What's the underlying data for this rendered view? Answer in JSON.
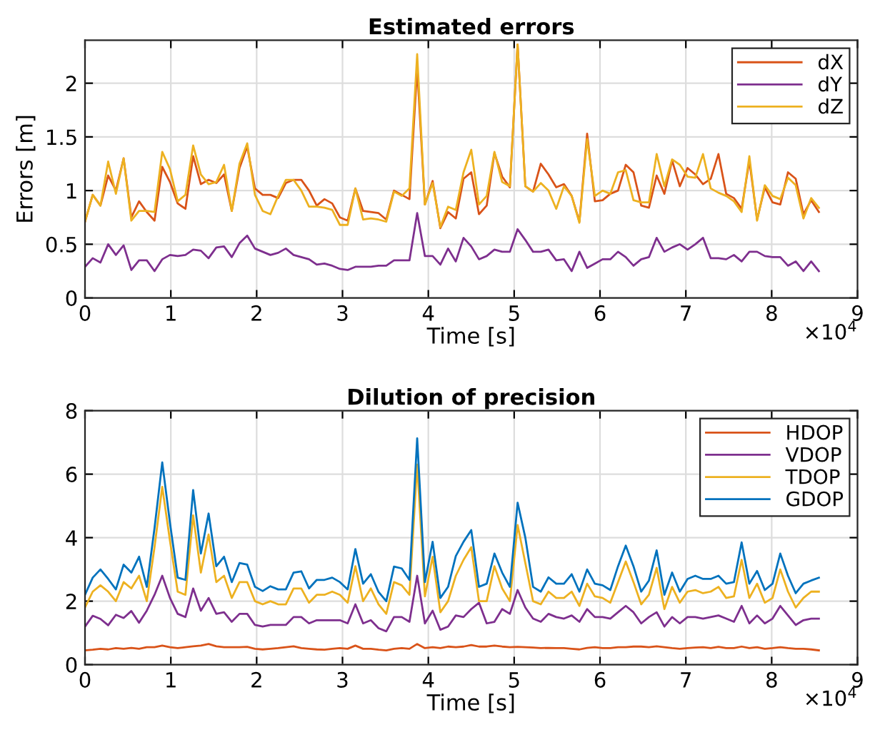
{
  "chart_data": [
    {
      "type": "line",
      "title": "Estimated errors",
      "xlabel": "Time [s]",
      "ylabel": "Errors [m]",
      "x": [
        0,
        0.09,
        0.18,
        0.27,
        0.36,
        0.45,
        0.54,
        0.63,
        0.72,
        0.81,
        0.9,
        0.99,
        1.08,
        1.17,
        1.26,
        1.35,
        1.44,
        1.53,
        1.62,
        1.71,
        1.8,
        1.89,
        1.98,
        2.07,
        2.16,
        2.25,
        2.34,
        2.43,
        2.52,
        2.61,
        2.7,
        2.79,
        2.88,
        2.97,
        3.06,
        3.15,
        3.24,
        3.33,
        3.42,
        3.51,
        3.6,
        3.69,
        3.78,
        3.87,
        3.96,
        4.05,
        4.14,
        4.23,
        4.32,
        4.41,
        4.5,
        4.59,
        4.68,
        4.77,
        4.86,
        4.95,
        5.04,
        5.13,
        5.22,
        5.31,
        5.4,
        5.49,
        5.58,
        5.67,
        5.76,
        5.85,
        5.94,
        6.03,
        6.12,
        6.21,
        6.3,
        6.39,
        6.48,
        6.57,
        6.66,
        6.75,
        6.84,
        6.93,
        7.02,
        7.11,
        7.2,
        7.29,
        7.38,
        7.47,
        7.56,
        7.65,
        7.74,
        7.83,
        7.92,
        8.01,
        8.1,
        8.19,
        8.28,
        8.37,
        8.46,
        8.55
      ],
      "series": [
        {
          "name": "dX",
          "color": "#d95319",
          "values": [
            0.71,
            0.96,
            0.86,
            1.14,
            1.0,
            1.3,
            0.75,
            0.9,
            0.8,
            0.72,
            1.22,
            1.08,
            0.88,
            0.83,
            1.32,
            1.06,
            1.1,
            1.07,
            1.15,
            0.81,
            1.21,
            1.41,
            1.02,
            0.96,
            0.96,
            0.93,
            1.07,
            1.1,
            1.1,
            1.0,
            0.86,
            0.92,
            0.88,
            0.75,
            0.72,
            1.02,
            0.81,
            0.8,
            0.79,
            0.73,
            1.0,
            0.96,
            0.92,
            2.14,
            0.87,
            1.09,
            0.65,
            0.8,
            0.74,
            1.11,
            1.17,
            0.78,
            0.86,
            1.35,
            1.13,
            1.03,
            2.36,
            1.04,
            0.99,
            1.25,
            1.15,
            1.03,
            1.06,
            0.95,
            0.71,
            1.53,
            0.9,
            0.91,
            0.97,
            1.0,
            1.24,
            1.17,
            0.86,
            0.84,
            1.14,
            0.97,
            1.28,
            1.04,
            1.21,
            1.15,
            1.06,
            1.11,
            1.34,
            0.97,
            0.93,
            0.83,
            1.28,
            0.73,
            1.03,
            0.89,
            0.87,
            1.17,
            1.11,
            0.78,
            0.91,
            0.8
          ]
        },
        {
          "name": "dY",
          "color": "#7e2f8e",
          "values": [
            0.29,
            0.37,
            0.33,
            0.5,
            0.4,
            0.49,
            0.26,
            0.35,
            0.35,
            0.25,
            0.36,
            0.4,
            0.39,
            0.4,
            0.45,
            0.44,
            0.37,
            0.47,
            0.48,
            0.38,
            0.51,
            0.58,
            0.46,
            0.43,
            0.4,
            0.42,
            0.46,
            0.4,
            0.38,
            0.36,
            0.31,
            0.32,
            0.3,
            0.27,
            0.26,
            0.29,
            0.29,
            0.29,
            0.3,
            0.3,
            0.35,
            0.35,
            0.35,
            0.79,
            0.39,
            0.39,
            0.31,
            0.46,
            0.34,
            0.56,
            0.48,
            0.36,
            0.39,
            0.45,
            0.43,
            0.43,
            0.64,
            0.54,
            0.43,
            0.43,
            0.45,
            0.35,
            0.36,
            0.25,
            0.43,
            0.28,
            0.32,
            0.36,
            0.36,
            0.43,
            0.38,
            0.3,
            0.36,
            0.38,
            0.56,
            0.43,
            0.47,
            0.5,
            0.45,
            0.5,
            0.56,
            0.37,
            0.37,
            0.36,
            0.4,
            0.34,
            0.43,
            0.43,
            0.39,
            0.38,
            0.38,
            0.3,
            0.34,
            0.25,
            0.34,
            0.25
          ]
        },
        {
          "name": "dZ",
          "color": "#edb120",
          "values": [
            0.71,
            0.96,
            0.86,
            1.27,
            0.97,
            1.3,
            0.72,
            0.81,
            0.81,
            0.8,
            1.36,
            1.2,
            0.9,
            0.96,
            1.42,
            1.15,
            1.06,
            1.08,
            1.24,
            0.81,
            1.25,
            1.44,
            0.96,
            0.81,
            0.78,
            0.95,
            1.1,
            1.1,
            1.0,
            0.85,
            0.85,
            0.84,
            0.82,
            0.68,
            0.68,
            1.02,
            0.73,
            0.74,
            0.73,
            0.71,
            0.99,
            0.95,
            1.02,
            2.27,
            0.87,
            1.07,
            0.66,
            0.85,
            0.82,
            1.17,
            1.38,
            0.87,
            0.95,
            1.36,
            1.08,
            1.04,
            2.36,
            1.04,
            0.99,
            1.07,
            1.0,
            0.83,
            1.04,
            0.95,
            0.7,
            1.48,
            0.95,
            1.0,
            0.97,
            1.17,
            1.19,
            0.91,
            0.89,
            0.89,
            1.34,
            1.04,
            1.29,
            1.24,
            1.13,
            1.12,
            1.34,
            1.02,
            0.98,
            0.95,
            0.9,
            0.8,
            1.32,
            0.72,
            1.05,
            0.95,
            0.92,
            1.12,
            1.05,
            0.74,
            0.93,
            0.84
          ]
        }
      ],
      "xlim": [
        0,
        9
      ],
      "xticks": [
        0,
        1,
        2,
        3,
        4,
        5,
        6,
        7,
        8,
        9
      ],
      "ylim": [
        0,
        2.4
      ],
      "yticks": [
        0,
        0.5,
        1,
        1.5,
        2
      ],
      "grid": true,
      "legend": "top right",
      "annotations": [
        "×10$^{4}$"
      ]
    },
    {
      "type": "line",
      "title": "Dilution of precision",
      "xlabel": "Time [s]",
      "x": [
        0,
        0.09,
        0.18,
        0.27,
        0.36,
        0.45,
        0.54,
        0.63,
        0.72,
        0.81,
        0.9,
        0.99,
        1.08,
        1.17,
        1.26,
        1.35,
        1.44,
        1.53,
        1.62,
        1.71,
        1.8,
        1.89,
        1.98,
        2.07,
        2.16,
        2.25,
        2.34,
        2.43,
        2.52,
        2.61,
        2.7,
        2.79,
        2.88,
        2.97,
        3.06,
        3.15,
        3.24,
        3.33,
        3.42,
        3.51,
        3.6,
        3.69,
        3.78,
        3.87,
        3.96,
        4.05,
        4.14,
        4.23,
        4.32,
        4.41,
        4.5,
        4.59,
        4.68,
        4.77,
        4.86,
        4.95,
        5.04,
        5.13,
        5.22,
        5.31,
        5.4,
        5.49,
        5.58,
        5.67,
        5.76,
        5.85,
        5.94,
        6.03,
        6.12,
        6.21,
        6.3,
        6.39,
        6.48,
        6.57,
        6.66,
        6.75,
        6.84,
        6.93,
        7.02,
        7.11,
        7.2,
        7.29,
        7.38,
        7.47,
        7.56,
        7.65,
        7.74,
        7.83,
        7.92,
        8.01,
        8.1,
        8.19,
        8.28,
        8.37,
        8.46,
        8.55
      ],
      "series": [
        {
          "name": "HDOP",
          "color": "#d95319",
          "values": [
            0.45,
            0.47,
            0.5,
            0.48,
            0.52,
            0.5,
            0.53,
            0.5,
            0.55,
            0.55,
            0.6,
            0.55,
            0.52,
            0.55,
            0.58,
            0.6,
            0.65,
            0.58,
            0.55,
            0.55,
            0.55,
            0.56,
            0.5,
            0.48,
            0.5,
            0.52,
            0.55,
            0.58,
            0.52,
            0.5,
            0.48,
            0.47,
            0.5,
            0.52,
            0.5,
            0.6,
            0.5,
            0.5,
            0.47,
            0.45,
            0.5,
            0.52,
            0.5,
            0.65,
            0.52,
            0.55,
            0.52,
            0.57,
            0.55,
            0.57,
            0.62,
            0.57,
            0.57,
            0.6,
            0.57,
            0.55,
            0.56,
            0.55,
            0.54,
            0.52,
            0.53,
            0.52,
            0.52,
            0.5,
            0.48,
            0.53,
            0.55,
            0.52,
            0.52,
            0.55,
            0.55,
            0.57,
            0.57,
            0.55,
            0.58,
            0.55,
            0.52,
            0.5,
            0.52,
            0.54,
            0.55,
            0.52,
            0.56,
            0.52,
            0.52,
            0.57,
            0.52,
            0.55,
            0.5,
            0.52,
            0.55,
            0.52,
            0.5,
            0.5,
            0.48,
            0.45
          ]
        },
        {
          "name": "VDOP",
          "color": "#7e2f8e",
          "values": [
            1.2,
            1.54,
            1.44,
            1.24,
            1.57,
            1.47,
            1.69,
            1.32,
            1.7,
            2.2,
            2.8,
            2.1,
            1.6,
            1.5,
            2.4,
            1.7,
            2.1,
            1.6,
            1.65,
            1.35,
            1.6,
            1.6,
            1.25,
            1.2,
            1.25,
            1.25,
            1.25,
            1.5,
            1.5,
            1.3,
            1.4,
            1.4,
            1.4,
            1.4,
            1.3,
            1.9,
            1.3,
            1.4,
            1.15,
            1.05,
            1.5,
            1.5,
            1.35,
            2.8,
            1.3,
            1.7,
            1.1,
            1.2,
            1.55,
            1.5,
            1.75,
            1.95,
            1.3,
            1.35,
            1.75,
            1.6,
            2.35,
            1.8,
            1.45,
            1.35,
            1.6,
            1.5,
            1.45,
            1.55,
            1.35,
            1.75,
            1.5,
            1.5,
            1.45,
            1.65,
            1.85,
            1.65,
            1.3,
            1.5,
            1.65,
            1.2,
            1.5,
            1.3,
            1.5,
            1.5,
            1.45,
            1.5,
            1.55,
            1.45,
            1.35,
            1.85,
            1.3,
            1.55,
            1.3,
            1.45,
            1.85,
            1.55,
            1.25,
            1.4,
            1.45,
            1.45
          ]
        },
        {
          "name": "TDOP",
          "color": "#edb120",
          "values": [
            1.8,
            2.3,
            2.5,
            2.3,
            2.0,
            2.6,
            2.4,
            2.8,
            2.0,
            3.7,
            5.6,
            3.9,
            2.3,
            2.2,
            4.7,
            2.9,
            4.1,
            2.6,
            2.8,
            2.1,
            2.6,
            2.6,
            2.0,
            1.9,
            2.0,
            1.9,
            1.9,
            2.4,
            2.4,
            1.95,
            2.2,
            2.2,
            2.3,
            2.2,
            1.95,
            3.1,
            2.0,
            2.4,
            1.9,
            1.6,
            2.6,
            2.5,
            2.2,
            6.3,
            2.15,
            3.4,
            1.65,
            2.0,
            2.8,
            3.3,
            3.7,
            2.0,
            2.0,
            3.1,
            2.4,
            2.0,
            4.4,
            3.2,
            2.0,
            1.9,
            2.3,
            2.1,
            2.1,
            2.3,
            1.85,
            2.55,
            2.15,
            2.1,
            1.95,
            2.6,
            3.25,
            2.6,
            1.9,
            2.2,
            3.05,
            1.75,
            2.45,
            1.95,
            2.3,
            2.35,
            2.25,
            2.3,
            2.45,
            2.1,
            2.15,
            3.3,
            2.1,
            2.55,
            1.95,
            2.1,
            3.0,
            2.3,
            1.8,
            2.1,
            2.3,
            2.3
          ]
        },
        {
          "name": "GDOP",
          "color": "#0072bd",
          "values": [
            2.2,
            2.74,
            3.0,
            2.7,
            2.37,
            3.15,
            2.9,
            3.4,
            2.45,
            4.3,
            6.37,
            4.46,
            2.74,
            2.67,
            5.5,
            3.5,
            4.76,
            3.1,
            3.4,
            2.6,
            3.2,
            3.15,
            2.45,
            2.32,
            2.47,
            2.37,
            2.37,
            2.9,
            2.94,
            2.4,
            2.67,
            2.67,
            2.74,
            2.6,
            2.37,
            3.64,
            2.55,
            2.85,
            2.29,
            2.0,
            3.09,
            3.03,
            2.67,
            7.13,
            2.6,
            3.87,
            2.1,
            2.45,
            3.42,
            3.87,
            4.24,
            2.45,
            2.55,
            3.5,
            2.9,
            2.45,
            5.1,
            4.0,
            2.45,
            2.3,
            2.75,
            2.55,
            2.55,
            2.85,
            2.3,
            3.0,
            2.55,
            2.5,
            2.35,
            3.1,
            3.75,
            3.1,
            2.3,
            2.65,
            3.6,
            2.2,
            2.9,
            2.3,
            2.7,
            2.8,
            2.7,
            2.7,
            2.8,
            2.55,
            2.6,
            3.85,
            2.55,
            2.95,
            2.35,
            2.55,
            3.5,
            2.8,
            2.25,
            2.55,
            2.65,
            2.74
          ]
        }
      ],
      "xlim": [
        0,
        9
      ],
      "xticks": [
        0,
        1,
        2,
        3,
        4,
        5,
        6,
        7,
        8,
        9
      ],
      "ylim": [
        0,
        8
      ],
      "yticks": [
        0,
        2,
        4,
        6,
        8
      ],
      "grid": true,
      "legend": "top right",
      "annotations": [
        "×10$^{4}$"
      ]
    }
  ]
}
